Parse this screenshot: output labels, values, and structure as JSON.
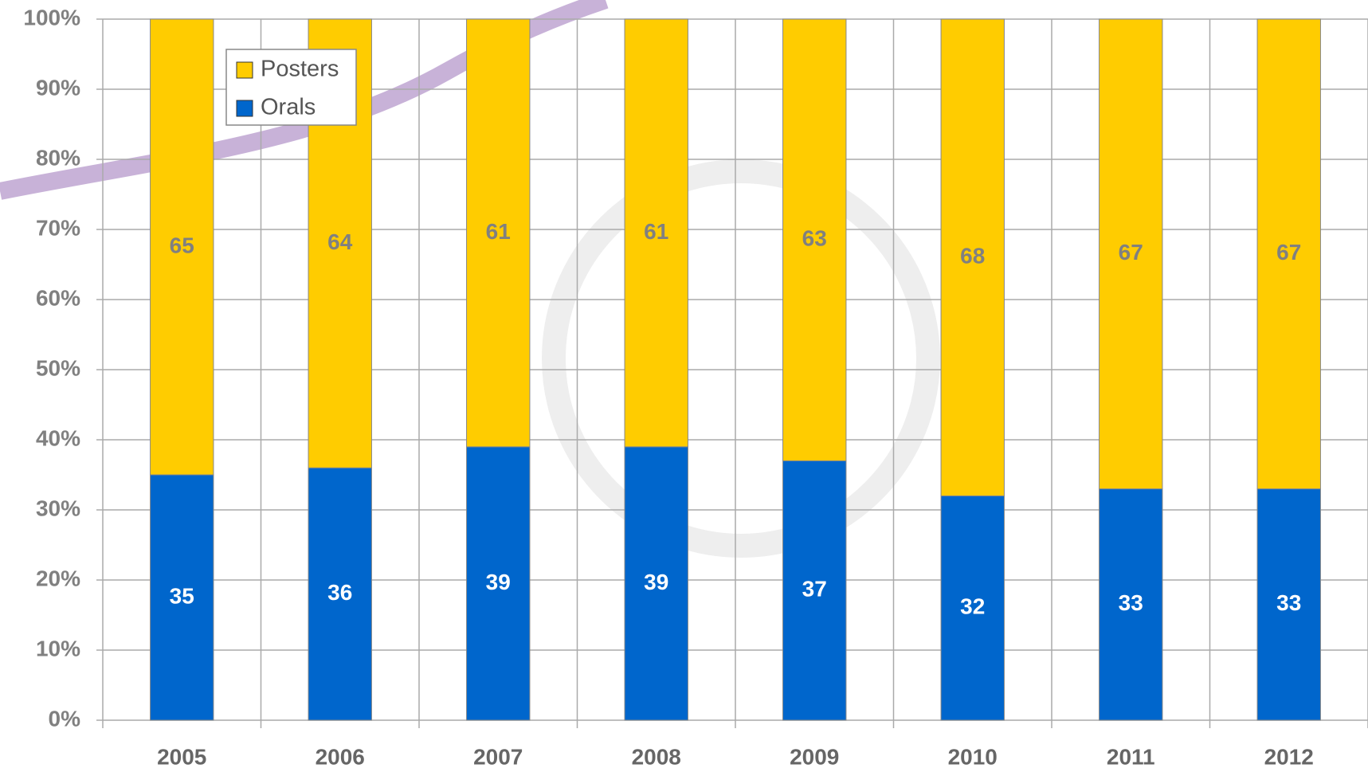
{
  "chart_data": {
    "type": "stacked_bar",
    "categories": [
      "2005",
      "2006",
      "2007",
      "2008",
      "2009",
      "2010",
      "2011",
      "2012"
    ],
    "series": [
      {
        "name": "Orals",
        "color": "#0066cc",
        "values": [
          35,
          36,
          39,
          39,
          37,
          32,
          33,
          33
        ]
      },
      {
        "name": "Posters",
        "color": "#ffcc00",
        "values": [
          65,
          64,
          61,
          61,
          63,
          68,
          67,
          67
        ]
      }
    ],
    "ylim": [
      0,
      100
    ],
    "yticks": [
      {
        "value": 0,
        "label": "0%"
      },
      {
        "value": 10,
        "label": "10%"
      },
      {
        "value": 20,
        "label": "20%"
      },
      {
        "value": 30,
        "label": "30%"
      },
      {
        "value": 40,
        "label": "40%"
      },
      {
        "value": 50,
        "label": "50%"
      },
      {
        "value": 60,
        "label": "60%"
      },
      {
        "value": 70,
        "label": "70%"
      },
      {
        "value": 80,
        "label": "80%"
      },
      {
        "value": 90,
        "label": "90%"
      },
      {
        "value": 100,
        "label": "100%"
      }
    ],
    "grid": true,
    "legend": "upper left"
  }
}
